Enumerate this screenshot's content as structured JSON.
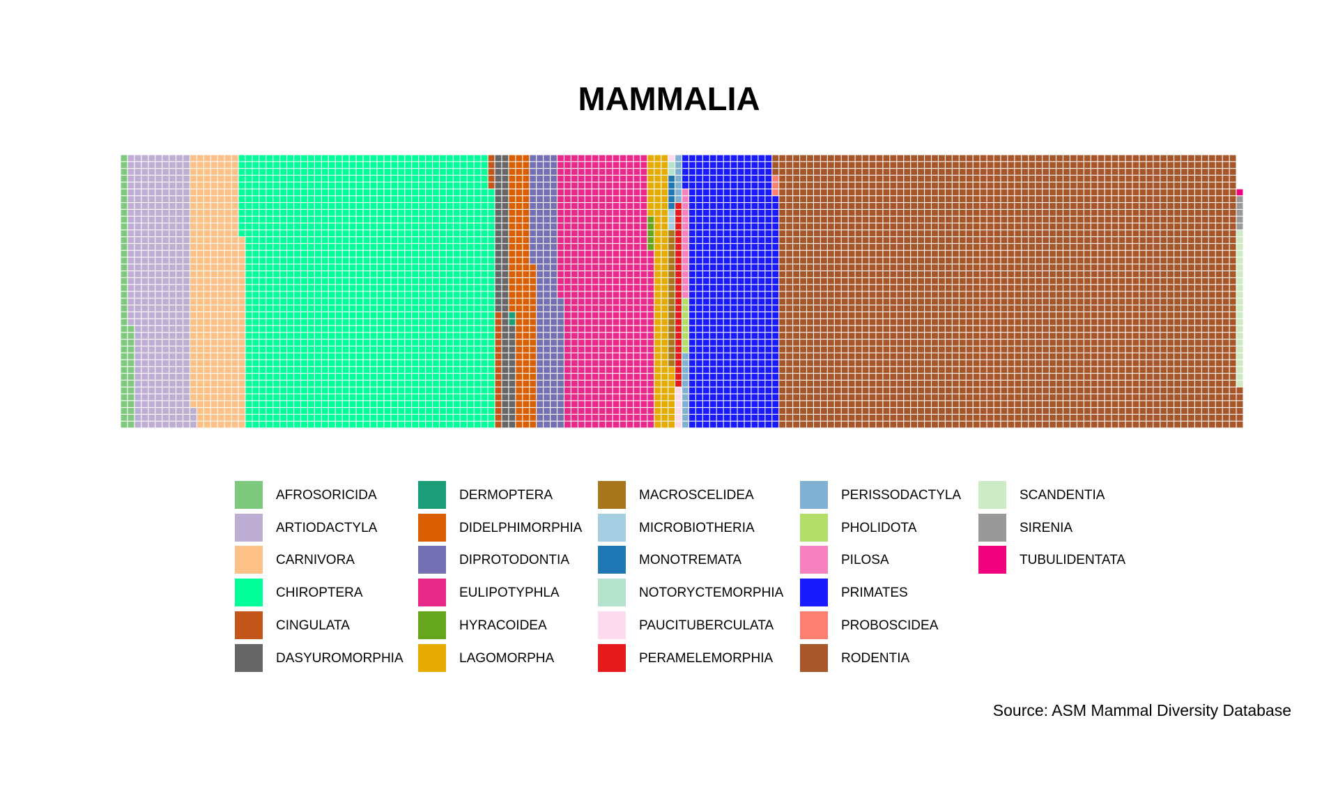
{
  "chart_data": {
    "type": "waffle",
    "title": "MAMMALIA",
    "caption": "Source: ASM Mammal Diversity Database",
    "rows": 40,
    "legend_position": "bottom",
    "series": [
      {
        "name": "AFROSORICIDA",
        "value": 55,
        "color": "#7FC97F"
      },
      {
        "name": "ARTIODACTYLA",
        "value": 348,
        "color": "#BEAED4"
      },
      {
        "name": "CARNIVORA",
        "value": 305,
        "color": "#FDC086"
      },
      {
        "name": "CHIROPTERA",
        "value": 1447,
        "color": "#00FF99"
      },
      {
        "name": "CINGULATA",
        "value": 22,
        "color": "#C2561A"
      },
      {
        "name": "DASYUROMORPHIA",
        "value": 78,
        "color": "#666666"
      },
      {
        "name": "DERMOPTERA",
        "value": 2,
        "color": "#1B9E77"
      },
      {
        "name": "DIDELPHIMORPHIA",
        "value": 127,
        "color": "#D95F02"
      },
      {
        "name": "DIPROTODONTIA",
        "value": 155,
        "color": "#7570B3"
      },
      {
        "name": "EULIPOTYPHLA",
        "value": 527,
        "color": "#E7298A"
      },
      {
        "name": "HYRACOIDEA",
        "value": 5,
        "color": "#66A61E"
      },
      {
        "name": "LAGOMORPHA",
        "value": 98,
        "color": "#E6AB02"
      },
      {
        "name": "MACROSCELIDEA",
        "value": 20,
        "color": "#A6761D"
      },
      {
        "name": "MICROBIOTHERIA",
        "value": 3,
        "color": "#A6CEE3"
      },
      {
        "name": "MONOTREMATA",
        "value": 5,
        "color": "#1F78B4"
      },
      {
        "name": "NOTORYCTEMORPHIA",
        "value": 2,
        "color": "#B3E2CD"
      },
      {
        "name": "PAUCITUBERCULATA",
        "value": 7,
        "color": "#FDDAEC"
      },
      {
        "name": "PERAMELEMORPHIA",
        "value": 27,
        "color": "#E41A1C"
      },
      {
        "name": "PERISSODACTYLA",
        "value": 18,
        "color": "#80B1D3"
      },
      {
        "name": "PHOLIDOTA",
        "value": 8,
        "color": "#B3DE69"
      },
      {
        "name": "PILOSA",
        "value": 16,
        "color": "#F781BF"
      },
      {
        "name": "PRIMATES",
        "value": 519,
        "color": "#1A1AFF"
      },
      {
        "name": "PROBOSCIDEA",
        "value": 3,
        "color": "#FB8072"
      },
      {
        "name": "RODENTIA",
        "value": 2649,
        "color": "#A65628"
      },
      {
        "name": "SCANDENTIA",
        "value": 23,
        "color": "#CCEBC5"
      },
      {
        "name": "SIRENIA",
        "value": 5,
        "color": "#999999"
      },
      {
        "name": "TUBULIDENTATA",
        "value": 1,
        "color": "#F0027F"
      }
    ]
  }
}
